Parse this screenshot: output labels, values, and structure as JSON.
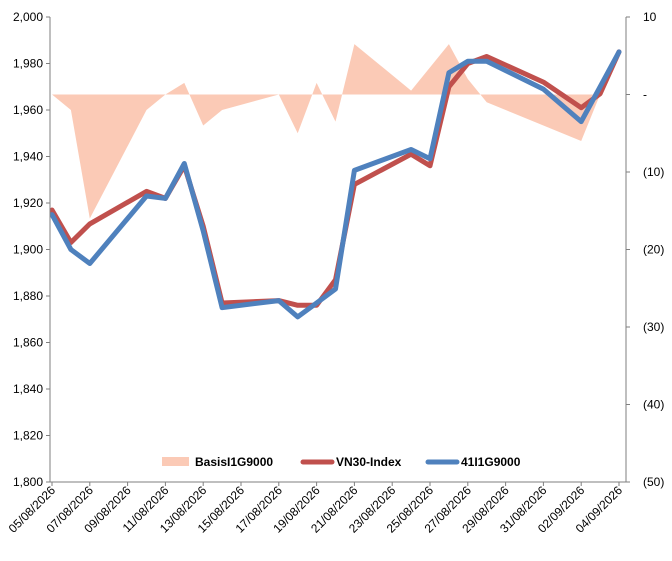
{
  "chart_data": {
    "type": "line",
    "title": "",
    "xlabel": "",
    "ylabel": "",
    "y2label": "",
    "x": [
      "05/08/2026",
      "06/08/2026",
      "07/08/2026",
      "10/08/2026",
      "11/08/2026",
      "12/08/2026",
      "13/08/2026",
      "14/08/2026",
      "17/08/2026",
      "18/08/2026",
      "19/08/2026",
      "20/08/2026",
      "21/08/2026",
      "24/08/2026",
      "25/08/2026",
      "26/08/2026",
      "27/08/2026",
      "28/08/2026",
      "31/08/2026",
      "02/09/2026",
      "03/09/2026",
      "04/09/2026"
    ],
    "x_tick_labels": [
      "05/08/2026",
      "07/08/2026",
      "09/08/2026",
      "11/08/2026",
      "13/08/2026",
      "15/08/2026",
      "17/08/2026",
      "19/08/2026",
      "21/08/2026",
      "23/08/2026",
      "25/08/2026",
      "27/08/2026",
      "29/08/2026",
      "31/08/2026",
      "02/09/2026",
      "04/09/2026"
    ],
    "ylim": [
      1800,
      2000
    ],
    "yticks": [
      1800,
      1820,
      1840,
      1860,
      1880,
      1900,
      1920,
      1940,
      1960,
      1980,
      2000
    ],
    "ytick_labels": [
      "1,800",
      "1,820",
      "1,840",
      "1,860",
      "1,880",
      "1,900",
      "1,920",
      "1,940",
      "1,960",
      "1,980",
      "2,000"
    ],
    "y2lim": [
      -50,
      10
    ],
    "y2ticks": [
      10,
      0,
      -10,
      -20,
      -30,
      -40,
      -50
    ],
    "y2tick_labels": [
      "10",
      "-",
      "(10)",
      "(20)",
      "(30)",
      "(40)",
      "(50)"
    ],
    "legend_position": "bottom",
    "grid": false,
    "series": [
      {
        "name": "BasisI1G9000",
        "kind": "area",
        "axis": "right",
        "color": "#fbcab6",
        "values": [
          0,
          -2,
          -16,
          -2,
          0,
          1.5,
          -4,
          -2,
          0,
          -5,
          1.5,
          -3.5,
          6.5,
          0.5,
          3.5,
          6.5,
          2,
          -1,
          -4,
          -6,
          0,
          0
        ]
      },
      {
        "name": "VN30-Index",
        "kind": "line",
        "axis": "left",
        "color": "#c0504d",
        "values": [
          1917,
          1903,
          1911,
          1925,
          1922,
          1936,
          1910,
          1877,
          1878,
          1876,
          1876,
          1887,
          1928,
          1941,
          1936,
          1970,
          1980,
          1983,
          1972,
          1961,
          1967,
          1985
        ]
      },
      {
        "name": "41I1G9000",
        "kind": "line",
        "axis": "left",
        "color": "#4f81bd",
        "values": [
          1915,
          1900,
          1894,
          1923,
          1922,
          1937,
          1908,
          1875,
          1878,
          1871,
          1877,
          1883,
          1934,
          1943,
          1939,
          1976,
          1981,
          1981,
          1969,
          1955,
          1970,
          1985
        ]
      }
    ]
  }
}
